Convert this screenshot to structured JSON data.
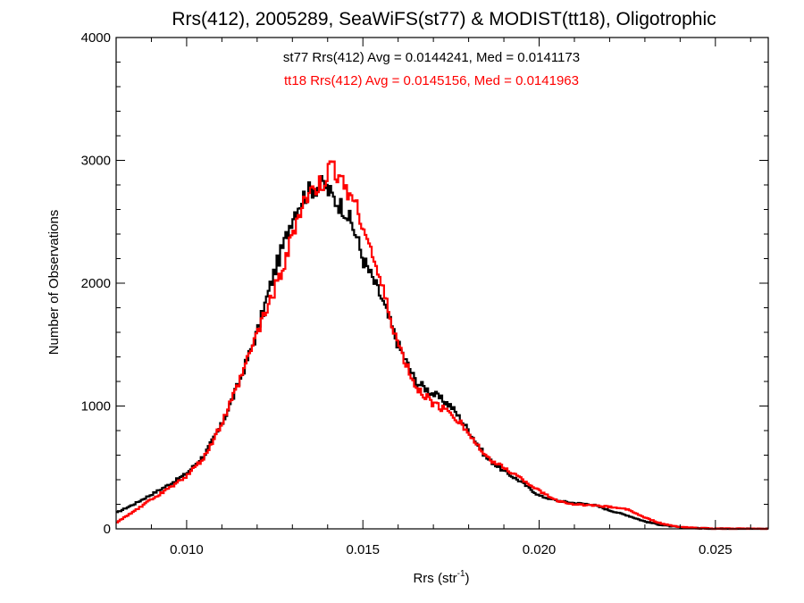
{
  "chart_data": {
    "type": "histogram",
    "title": "Rrs(412), 2005289, SeaWiFS(st77) & MODIST(tt18), Oligotrophic",
    "xlabel_base": "Rrs (str",
    "xlabel_sup": "-1",
    "xlabel_close": ")",
    "ylabel": "Number of Observations",
    "xlim": [
      0.008,
      0.0265
    ],
    "ylim": [
      0,
      4000
    ],
    "xticks": [
      {
        "value": 0.01,
        "label": "0.010"
      },
      {
        "value": 0.015,
        "label": "0.015"
      },
      {
        "value": 0.02,
        "label": "0.020"
      },
      {
        "value": 0.025,
        "label": "0.025"
      }
    ],
    "yticks": [
      {
        "value": 0,
        "label": "0"
      },
      {
        "value": 1000,
        "label": "1000"
      },
      {
        "value": 2000,
        "label": "2000"
      },
      {
        "value": 3000,
        "label": "3000"
      },
      {
        "value": 4000,
        "label": "4000"
      }
    ],
    "grid": false,
    "annotations": [
      {
        "text": "st77 Rrs(412) Avg = 0.0144241, Med = 0.0141173",
        "color": "#000000"
      },
      {
        "text": "tt18 Rrs(412) Avg = 0.0145156, Med = 0.0141963",
        "color": "#ff0000"
      }
    ],
    "series": [
      {
        "id": "st77",
        "color": "#000000",
        "points": [
          [
            0.008,
            130
          ],
          [
            0.0085,
            200
          ],
          [
            0.009,
            280
          ],
          [
            0.0095,
            360
          ],
          [
            0.01,
            450
          ],
          [
            0.0105,
            600
          ],
          [
            0.011,
            850
          ],
          [
            0.0115,
            1200
          ],
          [
            0.012,
            1600
          ],
          [
            0.0125,
            2100
          ],
          [
            0.0128,
            2350
          ],
          [
            0.013,
            2550
          ],
          [
            0.0133,
            2700
          ],
          [
            0.0136,
            2780
          ],
          [
            0.0139,
            2800
          ],
          [
            0.0142,
            2680
          ],
          [
            0.0145,
            2600
          ],
          [
            0.0148,
            2400
          ],
          [
            0.015,
            2200
          ],
          [
            0.0155,
            1900
          ],
          [
            0.016,
            1500
          ],
          [
            0.0165,
            1200
          ],
          [
            0.017,
            1100
          ],
          [
            0.0175,
            1000
          ],
          [
            0.018,
            800
          ],
          [
            0.0185,
            580
          ],
          [
            0.019,
            470
          ],
          [
            0.0195,
            380
          ],
          [
            0.02,
            270
          ],
          [
            0.0205,
            230
          ],
          [
            0.021,
            210
          ],
          [
            0.0215,
            200
          ],
          [
            0.022,
            150
          ],
          [
            0.0225,
            110
          ],
          [
            0.023,
            60
          ],
          [
            0.0235,
            30
          ],
          [
            0.024,
            12
          ],
          [
            0.0245,
            5
          ],
          [
            0.025,
            2
          ],
          [
            0.0265,
            0
          ]
        ]
      },
      {
        "id": "tt18",
        "color": "#ff0000",
        "points": [
          [
            0.008,
            50
          ],
          [
            0.0085,
            140
          ],
          [
            0.009,
            240
          ],
          [
            0.0095,
            330
          ],
          [
            0.01,
            430
          ],
          [
            0.0105,
            580
          ],
          [
            0.011,
            860
          ],
          [
            0.0115,
            1200
          ],
          [
            0.012,
            1600
          ],
          [
            0.0125,
            1950
          ],
          [
            0.0128,
            2150
          ],
          [
            0.013,
            2400
          ],
          [
            0.0133,
            2650
          ],
          [
            0.0136,
            2750
          ],
          [
            0.0139,
            2820
          ],
          [
            0.0141,
            2950
          ],
          [
            0.0144,
            2850
          ],
          [
            0.0147,
            2700
          ],
          [
            0.015,
            2500
          ],
          [
            0.0155,
            2000
          ],
          [
            0.016,
            1500
          ],
          [
            0.0165,
            1150
          ],
          [
            0.017,
            1020
          ],
          [
            0.0175,
            950
          ],
          [
            0.018,
            780
          ],
          [
            0.0185,
            580
          ],
          [
            0.019,
            500
          ],
          [
            0.0195,
            410
          ],
          [
            0.02,
            310
          ],
          [
            0.0205,
            230
          ],
          [
            0.021,
            200
          ],
          [
            0.0215,
            190
          ],
          [
            0.022,
            180
          ],
          [
            0.0225,
            160
          ],
          [
            0.023,
            90
          ],
          [
            0.0235,
            40
          ],
          [
            0.024,
            15
          ],
          [
            0.0245,
            6
          ],
          [
            0.025,
            2
          ],
          [
            0.0265,
            0
          ]
        ]
      }
    ]
  }
}
